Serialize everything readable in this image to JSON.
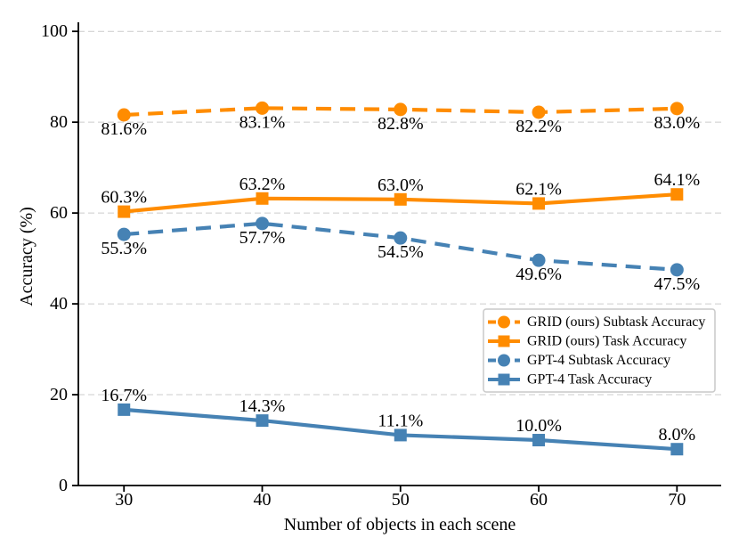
{
  "colors": {
    "background": "#ffffff",
    "grid": "#cccccc",
    "axis": "#000000",
    "text": "#000000",
    "legend_border": "#c9c9c9",
    "legend_background": "#ffffff",
    "orange": "#FF8C00",
    "blue": "#4682B4"
  },
  "chart_data": {
    "type": "line",
    "title": "",
    "xlabel": "Number of objects in each scene",
    "ylabel": "Accuracy (%)",
    "x": [
      30,
      40,
      50,
      60,
      70
    ],
    "x_tick_labels": [
      "30",
      "40",
      "50",
      "60",
      "70"
    ],
    "y_ticks": [
      0,
      20,
      40,
      60,
      80,
      100
    ],
    "y_tick_labels": [
      "0",
      "20",
      "40",
      "60",
      "80",
      "100"
    ],
    "xlim": [
      26.7,
      73.2
    ],
    "ylim": [
      0,
      102
    ],
    "grid": "horizontal-dashed",
    "legend_position": "center-right",
    "series": [
      {
        "name": "GRID (ours) Subtask Accuracy",
        "color": "#FF8C00",
        "line_style": "dashed",
        "marker": "circle",
        "label_side": "below",
        "values": [
          81.6,
          83.1,
          82.8,
          82.2,
          83.0
        ],
        "point_labels": [
          "81.6%",
          "83.1%",
          "82.8%",
          "82.2%",
          "83.0%"
        ]
      },
      {
        "name": "GRID (ours) Task Accuracy",
        "color": "#FF8C00",
        "line_style": "solid",
        "marker": "square",
        "label_side": "above",
        "values": [
          60.3,
          63.2,
          63.0,
          62.1,
          64.1
        ],
        "point_labels": [
          "60.3%",
          "63.2%",
          "63.0%",
          "62.1%",
          "64.1%"
        ]
      },
      {
        "name": "GPT-4 Subtask Accuracy",
        "color": "#4682B4",
        "line_style": "dashed",
        "marker": "circle",
        "label_side": "below",
        "values": [
          55.3,
          57.7,
          54.5,
          49.6,
          47.5
        ],
        "point_labels": [
          "55.3%",
          "57.7%",
          "54.5%",
          "49.6%",
          "47.5%"
        ]
      },
      {
        "name": "GPT-4 Task Accuracy",
        "color": "#4682B4",
        "line_style": "solid",
        "marker": "square",
        "label_side": "above",
        "values": [
          16.7,
          14.3,
          11.1,
          10.0,
          8.0
        ],
        "point_labels": [
          "16.7%",
          "14.3%",
          "11.1%",
          "10.0%",
          "8.0%"
        ]
      }
    ]
  }
}
